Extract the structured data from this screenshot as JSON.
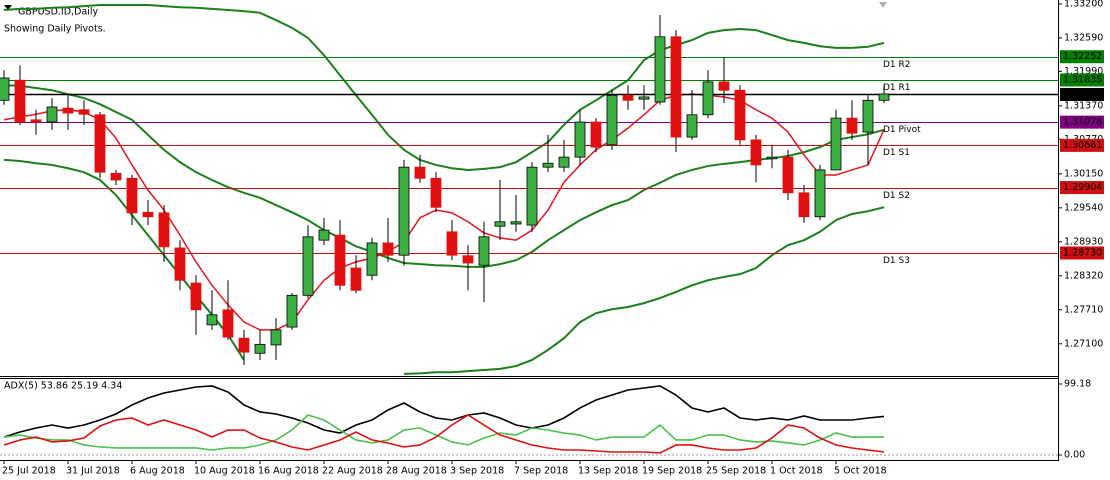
{
  "chart_data": [
    {
      "type": "candlestick",
      "title": "GBPUSD.ID,Daily",
      "subtitle": "Showing Daily Pivots.",
      "categories": [
        "25 Jul 2018",
        null,
        null,
        null,
        "31 Jul 2018",
        null,
        null,
        null,
        "6 Aug 2018",
        null,
        null,
        null,
        "10 Aug 2018",
        null,
        null,
        null,
        "16 Aug 2018",
        null,
        null,
        null,
        "22 Aug 2018",
        null,
        null,
        null,
        "28 Aug 2018",
        null,
        null,
        null,
        "3 Sep 2018",
        null,
        null,
        null,
        "7 Sep 2018",
        null,
        null,
        null,
        "13 Sep 2018",
        null,
        null,
        null,
        "19 Sep 2018",
        null,
        null,
        null,
        "25 Sep 2018",
        null,
        null,
        null,
        "1 Oct 2018",
        null,
        null,
        null,
        "5 Oct 2018",
        null,
        null,
        null
      ],
      "open": [
        1.3147,
        1.3183,
        1.3112,
        1.3108,
        1.3133,
        1.313,
        1.3121,
        1.3016,
        1.3007,
        1.2946,
        1.2945,
        1.2882,
        1.2819,
        1.2744,
        1.2771,
        1.272,
        1.2693,
        1.2708,
        1.274,
        1.2797,
        1.2896,
        1.2905,
        1.2846,
        1.2833,
        1.2891,
        1.2869,
        1.3027,
        1.3007,
        1.2911,
        1.2868,
        1.2851,
        1.2921,
        1.2925,
        1.2923,
        1.3027,
        1.3027,
        1.3045,
        1.3108,
        1.3067,
        1.3156,
        1.3149,
        1.3144,
        1.3261,
        1.3081,
        1.3121,
        1.318,
        1.3165,
        1.3076,
        1.3042,
        1.3045,
        1.2981,
        1.2938,
        1.3022,
        1.3115,
        1.309,
        1.3147
      ],
      "high": [
        1.3201,
        1.321,
        1.313,
        1.3151,
        1.3156,
        1.3147,
        1.3126,
        1.3022,
        1.3013,
        1.2968,
        1.2959,
        1.2896,
        1.2833,
        1.2806,
        1.2824,
        1.2735,
        1.2735,
        1.2756,
        1.2801,
        1.2923,
        1.2936,
        1.2932,
        1.2869,
        1.29,
        1.2936,
        1.304,
        1.3049,
        1.3018,
        1.2932,
        1.2887,
        1.2929,
        1.3004,
        1.2977,
        1.3036,
        1.3085,
        1.3076,
        1.313,
        1.3115,
        1.3165,
        1.3174,
        1.3174,
        1.33,
        1.3273,
        1.3165,
        1.3201,
        1.3223,
        1.3174,
        1.3085,
        1.3067,
        1.3058,
        1.2995,
        1.3031,
        1.313,
        1.3147,
        1.3156,
        1.3174
      ],
      "low": [
        1.3139,
        1.3103,
        1.3085,
        1.3094,
        1.3094,
        1.3103,
        1.3007,
        1.2995,
        1.2923,
        1.2923,
        1.2857,
        1.2806,
        1.2726,
        1.2735,
        1.2717,
        1.2672,
        1.2681,
        1.2681,
        1.2735,
        1.2792,
        1.2887,
        1.2806,
        1.2801,
        1.2824,
        1.2857,
        1.285,
        1.2999,
        1.2946,
        1.286,
        1.2806,
        1.2785,
        1.2896,
        1.2911,
        1.2911,
        1.3018,
        1.3018,
        1.3031,
        1.3054,
        1.3058,
        1.313,
        1.313,
        1.3139,
        1.3054,
        1.3076,
        1.3115,
        1.3142,
        1.3067,
        1.3,
        1.3025,
        1.2968,
        1.2927,
        1.2932,
        1.3022,
        1.3076,
        1.3031,
        1.3142
      ],
      "close": [
        1.3187,
        1.3108,
        1.3108,
        1.3135,
        1.3124,
        1.3122,
        1.3018,
        1.3004,
        1.2945,
        1.2938,
        1.2884,
        1.2824,
        1.2771,
        1.2762,
        1.2722,
        1.2695,
        1.2709,
        1.2735,
        1.2797,
        1.2902,
        1.2914,
        1.2815,
        1.2806,
        1.2891,
        1.2869,
        1.3027,
        1.3007,
        1.2955,
        1.2869,
        1.2855,
        1.2902,
        1.2929,
        1.2929,
        1.3027,
        1.3034,
        1.3045,
        1.3108,
        1.3063,
        1.3156,
        1.3147,
        1.3153,
        1.3261,
        1.3081,
        1.3121,
        1.318,
        1.3165,
        1.3076,
        1.3031,
        1.3045,
        1.2981,
        1.2938,
        1.3022,
        1.3115,
        1.3088,
        1.3147,
        1.31584
      ],
      "up_color": "#3cb043",
      "down_color": "#e01010",
      "lines": [
        {
          "color": "#1b7f1b",
          "values": [
            1.3309,
            1.3311,
            1.3311,
            1.3313,
            1.3314,
            1.3316,
            1.3318,
            1.3318,
            1.3318,
            1.3318,
            1.3316,
            1.3314,
            1.3313,
            1.3311,
            1.3309,
            1.3307,
            1.3304,
            1.3291,
            1.3277,
            1.3259,
            1.3228,
            1.3192,
            1.3156,
            1.3121,
            1.3085,
            1.3058,
            1.304,
            1.3031,
            1.3025,
            1.3022,
            1.3024,
            1.3027,
            1.3036,
            1.3054,
            1.3072,
            1.3103,
            1.313,
            1.3147,
            1.3165,
            1.3183,
            1.3219,
            1.3237,
            1.3246,
            1.3255,
            1.3268,
            1.3273,
            1.3275,
            1.3273,
            1.3264,
            1.3255,
            1.325,
            1.3244,
            1.3241,
            1.3241,
            1.3243,
            1.325
          ]
        },
        {
          "color": "#1b7f1b",
          "values": [
            1.3174,
            1.3173,
            1.3169,
            1.3165,
            1.3158,
            1.3151,
            1.314,
            1.3126,
            1.3112,
            1.3085,
            1.3058,
            1.3036,
            1.3018,
            1.3004,
            1.2991,
            1.2981,
            1.2972,
            1.2959,
            1.2946,
            1.2932,
            1.2914,
            1.29,
            1.2885,
            1.2875,
            1.2864,
            1.2855,
            1.2853,
            1.2851,
            1.285,
            1.2848,
            1.2848,
            1.2853,
            1.286,
            1.2875,
            1.2896,
            1.2914,
            1.2932,
            1.2946,
            1.2959,
            1.2968,
            1.2986,
            1.2999,
            1.3013,
            1.3022,
            1.3029,
            1.3033,
            1.3036,
            1.304,
            1.3043,
            1.3047,
            1.3054,
            1.3063,
            1.3076,
            1.3081,
            1.3086,
            1.3094
          ]
        },
        {
          "color": "#1b7f1b",
          "values": [
            1.304,
            1.3038,
            1.3034,
            1.3031,
            1.3025,
            1.3018,
            1.3004,
            1.2977,
            1.2941,
            1.2905,
            1.2869,
            1.2833,
            1.2797,
            1.2762,
            1.2726,
            1.2681,
            null,
            null,
            null,
            null,
            null,
            null,
            null,
            null,
            null,
            1.2656,
            1.2657,
            1.2659,
            1.2659,
            1.2661,
            1.2663,
            1.2665,
            1.267,
            1.2681,
            1.2699,
            1.272,
            1.2749,
            1.2765,
            1.2772,
            1.2776,
            1.2783,
            1.2792,
            1.2803,
            1.2815,
            1.2824,
            1.283,
            1.2835,
            1.2846,
            1.2869,
            1.2887,
            1.2896,
            1.2911,
            1.2932,
            1.2943,
            1.2948,
            1.2955
          ]
        },
        {
          "color": "#e8141e",
          "values": [
            1.3112,
            1.3117,
            1.3122,
            1.3128,
            1.313,
            1.3126,
            1.3112,
            1.3079,
            1.3031,
            1.2986,
            1.295,
            1.2905,
            1.2857,
            1.2815,
            1.278,
            1.2749,
            1.2735,
            1.2735,
            1.2749,
            1.2789,
            1.2824,
            1.2846,
            1.2857,
            1.2864,
            1.2875,
            1.2893,
            1.2936,
            1.295,
            1.2945,
            1.2929,
            1.2909,
            1.29,
            1.2896,
            1.2914,
            1.295,
            1.3,
            1.3031,
            1.3058,
            1.3076,
            1.3097,
            1.3121,
            1.3147,
            1.3156,
            1.3158,
            1.3156,
            1.3153,
            1.3147,
            1.313,
            1.3115,
            1.309,
            1.3049,
            1.3013,
            1.3013,
            1.3022,
            1.3031,
            1.3094
          ]
        }
      ],
      "levels": [
        {
          "name": "D1 R2",
          "value": 1.32252,
          "label": "1.32252",
          "color": "#008000"
        },
        {
          "name": "D1 R1",
          "value": 1.31835,
          "label": "1.31835",
          "color": "#008000"
        },
        {
          "name": "D1 Pivot",
          "value": 1.31078,
          "label": "1.31078",
          "color": "#800080"
        },
        {
          "name": "D1 S1",
          "value": 1.30661,
          "label": "1.30661",
          "color": "#d01010"
        },
        {
          "name": "D1 S2",
          "value": 1.29904,
          "label": "1.29904",
          "color": "#d01010"
        },
        {
          "name": "D1 S3",
          "value": 1.2873,
          "label": "1.28730",
          "color": "#d01010"
        }
      ],
      "current_price": 1.31584,
      "ylim": [
        1.2654,
        1.3327
      ],
      "yticks": [
        {
          "value": 1.332,
          "label": "1.33200"
        },
        {
          "value": 1.3259,
          "label": "1.32590"
        },
        {
          "value": 1.3199,
          "label": "1.31990"
        },
        {
          "value": 1.3137,
          "label": "1.31370"
        },
        {
          "value": 1.3077,
          "label": "1.30770"
        },
        {
          "value": 1.3015,
          "label": "1.30150"
        },
        {
          "value": 1.2954,
          "label": "1.29540"
        },
        {
          "value": 1.2893,
          "label": "1.28930"
        },
        {
          "value": 1.2832,
          "label": "1.28320"
        },
        {
          "value": 1.2771,
          "label": "1.27710"
        },
        {
          "value": 1.271,
          "label": "1.27100"
        }
      ]
    },
    {
      "type": "line",
      "title": "ADX(5) 53.86 25.19 4.34",
      "series": [
        {
          "color": "#000000",
          "values": [
            25.1,
            32.1,
            37.7,
            41.9,
            37.7,
            41.9,
            48.9,
            57.3,
            69.9,
            79.6,
            86.6,
            90.8,
            95.0,
            96.4,
            88.0,
            69.9,
            60.1,
            57.3,
            51.7,
            44.7,
            34.9,
            30.7,
            41.9,
            48.9,
            62.9,
            72.6,
            60.1,
            51.7,
            48.9,
            55.9,
            58.7,
            51.7,
            41.9,
            37.7,
            41.9,
            51.7,
            65.7,
            76.8,
            83.8,
            90.8,
            93.6,
            96.4,
            83.8,
            65.7,
            60.1,
            65.7,
            51.7,
            48.9,
            51.7,
            48.9,
            54.5,
            48.9,
            48.9,
            48.9,
            51.7,
            53.86
          ]
        },
        {
          "color": "#4cc04c",
          "values": [
            25.1,
            27.9,
            23.7,
            21.0,
            21.0,
            14.0,
            11.2,
            9.8,
            9.8,
            9.8,
            9.8,
            9.8,
            9.8,
            7.0,
            9.8,
            9.8,
            14.0,
            21.0,
            34.9,
            55.9,
            48.9,
            34.9,
            21.0,
            16.8,
            21.0,
            34.9,
            37.7,
            27.9,
            18.2,
            14.0,
            23.7,
            30.7,
            27.9,
            37.7,
            34.9,
            30.7,
            27.9,
            21.0,
            25.1,
            25.1,
            25.1,
            41.9,
            21.0,
            21.0,
            27.9,
            27.9,
            21.0,
            18.2,
            19.6,
            16.8,
            14.0,
            21.0,
            30.7,
            25.1,
            25.1,
            25.19
          ]
        },
        {
          "color": "#e01010",
          "values": [
            14.0,
            21.0,
            25.1,
            18.2,
            19.6,
            23.7,
            40.5,
            48.9,
            51.7,
            41.9,
            48.9,
            41.9,
            34.9,
            25.1,
            34.9,
            34.9,
            23.7,
            18.2,
            11.2,
            7.0,
            14.0,
            21.0,
            32.1,
            21.0,
            16.8,
            11.2,
            14.0,
            25.1,
            41.9,
            55.9,
            41.9,
            27.9,
            21.0,
            14.0,
            9.8,
            7.0,
            7.0,
            5.6,
            4.2,
            4.2,
            4.2,
            2.8,
            14.0,
            14.0,
            9.8,
            7.0,
            7.0,
            9.8,
            23.7,
            41.9,
            37.7,
            23.7,
            14.0,
            9.8,
            7.0,
            4.34
          ]
        }
      ],
      "ylim": [
        0,
        99.18
      ],
      "yticks": [
        99.18,
        {
          "value": 0,
          "label": "0.00"
        }
      ]
    }
  ]
}
